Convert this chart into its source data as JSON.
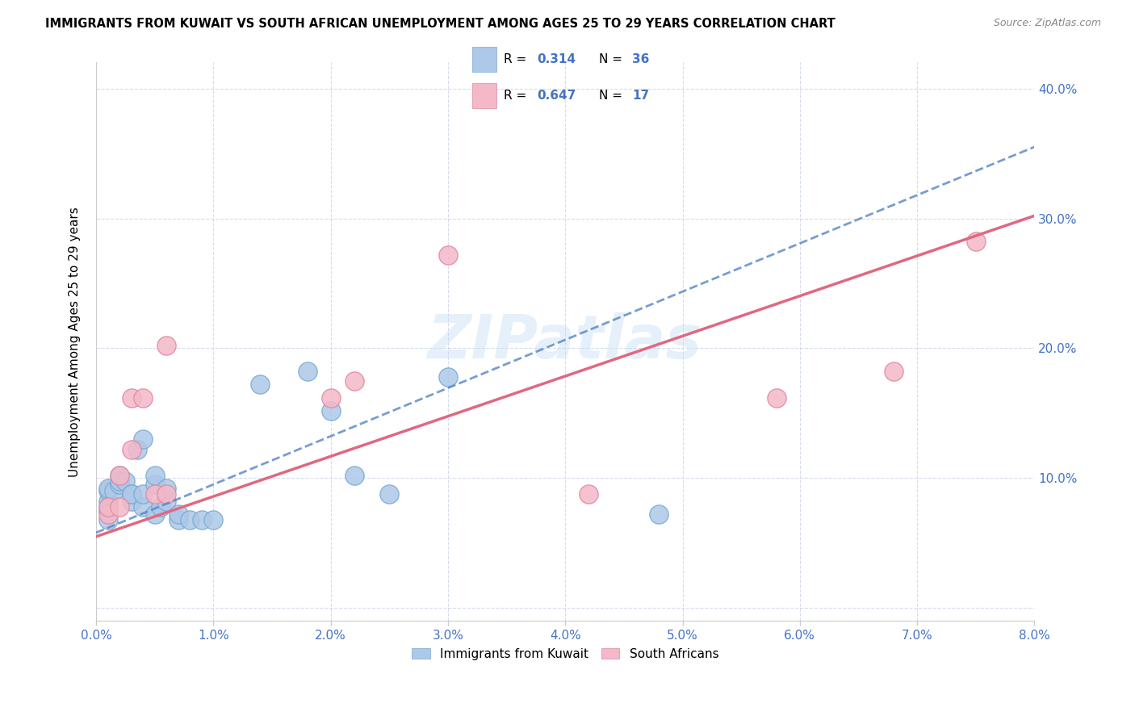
{
  "title": "IMMIGRANTS FROM KUWAIT VS SOUTH AFRICAN UNEMPLOYMENT AMONG AGES 25 TO 29 YEARS CORRELATION CHART",
  "source": "Source: ZipAtlas.com",
  "ylabel": "Unemployment Among Ages 25 to 29 years",
  "xlim": [
    0.0,
    0.08
  ],
  "ylim": [
    -0.01,
    0.42
  ],
  "legend_label1": "Immigrants from Kuwait",
  "legend_label2": "South Africans",
  "R1": "0.314",
  "N1": "36",
  "R2": "0.647",
  "N2": "17",
  "blue_color": "#adc8e8",
  "blue_edge_color": "#7aaad0",
  "pink_color": "#f4b8c8",
  "pink_edge_color": "#e088a0",
  "blue_line_color": "#5585c5",
  "blue_line_style": "--",
  "pink_line_color": "#e06880",
  "tick_color": "#4472C4",
  "grid_color": "#d0d8e8",
  "watermark": "ZIPatlas",
  "blue_points_x": [
    0.001,
    0.001,
    0.001,
    0.001,
    0.001,
    0.001,
    0.0015,
    0.002,
    0.002,
    0.002,
    0.0025,
    0.003,
    0.003,
    0.003,
    0.0035,
    0.004,
    0.004,
    0.004,
    0.005,
    0.005,
    0.005,
    0.0055,
    0.006,
    0.006,
    0.007,
    0.007,
    0.008,
    0.009,
    0.01,
    0.014,
    0.018,
    0.02,
    0.022,
    0.025,
    0.03,
    0.048
  ],
  "blue_points_y": [
    0.075,
    0.082,
    0.09,
    0.092,
    0.078,
    0.068,
    0.09,
    0.095,
    0.098,
    0.102,
    0.098,
    0.082,
    0.088,
    0.088,
    0.122,
    0.13,
    0.078,
    0.088,
    0.095,
    0.102,
    0.072,
    0.078,
    0.082,
    0.092,
    0.068,
    0.072,
    0.068,
    0.068,
    0.068,
    0.172,
    0.182,
    0.152,
    0.102,
    0.088,
    0.178,
    0.072
  ],
  "pink_points_x": [
    0.001,
    0.001,
    0.002,
    0.002,
    0.003,
    0.003,
    0.004,
    0.005,
    0.006,
    0.006,
    0.02,
    0.022,
    0.03,
    0.042,
    0.058,
    0.068,
    0.075
  ],
  "pink_points_y": [
    0.072,
    0.078,
    0.078,
    0.102,
    0.122,
    0.162,
    0.162,
    0.088,
    0.088,
    0.202,
    0.162,
    0.175,
    0.272,
    0.088,
    0.162,
    0.182,
    0.282
  ],
  "blue_trendline_x": [
    0.0,
    0.08
  ],
  "blue_trendline_y": [
    0.058,
    0.355
  ],
  "pink_trendline_x": [
    0.0,
    0.08
  ],
  "pink_trendline_y": [
    0.055,
    0.302
  ]
}
